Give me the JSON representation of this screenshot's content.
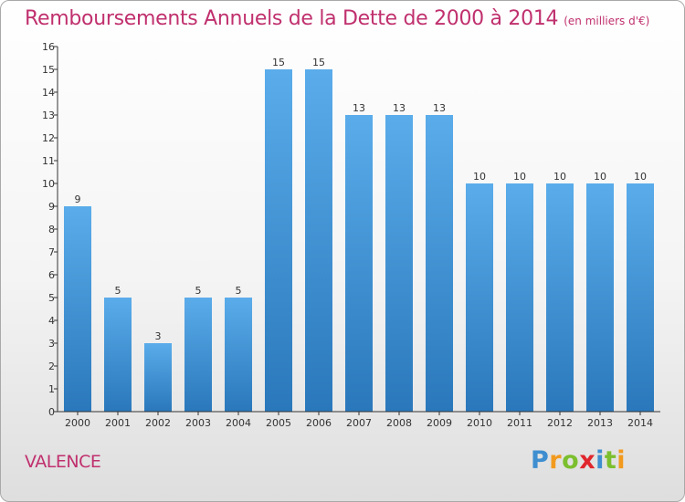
{
  "title": "Remboursements Annuels de la Dette de 2000 à 2014",
  "unit": "(en milliers d'€)",
  "city": "VALENCE",
  "logo": "Proxiti",
  "colors": {
    "title": "#c0306e",
    "bar_top": "#5aacea",
    "bar_bottom": "#2a78bb",
    "axis": "#333333"
  },
  "chart_data": {
    "type": "bar",
    "title": "Remboursements Annuels de la Dette de 2000 à 2014",
    "xlabel": "",
    "ylabel": "",
    "categories": [
      "2000",
      "2001",
      "2002",
      "2003",
      "2004",
      "2005",
      "2006",
      "2007",
      "2008",
      "2009",
      "2010",
      "2011",
      "2012",
      "2013",
      "2014"
    ],
    "values": [
      9,
      5,
      3,
      5,
      5,
      15,
      15,
      13,
      13,
      13,
      10,
      10,
      10,
      10,
      10
    ],
    "ylim": [
      0,
      16
    ],
    "yticks": [
      0,
      1,
      2,
      3,
      4,
      5,
      6,
      7,
      8,
      9,
      10,
      11,
      12,
      13,
      14,
      15,
      16
    ],
    "grid": false,
    "legend": "none"
  }
}
